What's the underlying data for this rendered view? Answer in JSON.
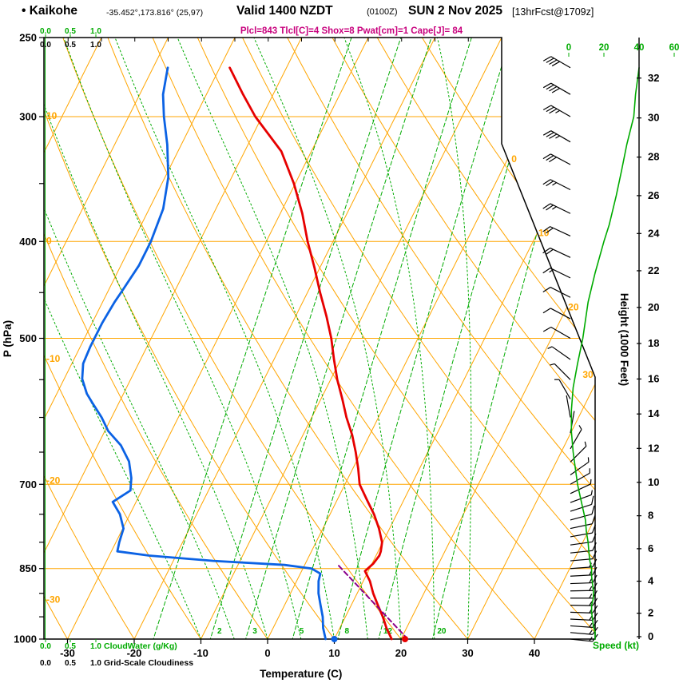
{
  "chart_data": {
    "type": "skewt_sounding",
    "title": {
      "station": "• Kaikohe",
      "coords": "-35.452°,173.816° (25,97)",
      "valid": "Valid 1400 NZDT",
      "valid_z": "(0100Z)",
      "date": "SUN 2 Nov 2025",
      "fcst": "[13hrFcst@1709z]",
      "params": "Plcl=843 Tlcl[C]=4 Shox=8 Pwat[cm]=1 Cape[J]= 84"
    },
    "axes": {
      "pressure_label": "P (hPa)",
      "temp_label": "Temperature (C)",
      "height_label": "Height (1000 Feet)",
      "speed_label": "Speed (kt)",
      "cloudwater_label": "CloudWater (g/Kg)",
      "gridscale_label": "Grid-Scale Cloudiness",
      "pressure_ticks": [
        250,
        300,
        400,
        500,
        700,
        850,
        1000
      ],
      "temp_ticks": [
        -30,
        -20,
        -10,
        0,
        10,
        20,
        30,
        40
      ],
      "height_ticks": [
        0,
        2,
        4,
        6,
        8,
        10,
        12,
        14,
        16,
        18,
        20,
        22,
        24,
        26,
        28,
        30,
        32
      ],
      "speed_ticks": [
        0,
        20,
        40,
        60
      ],
      "cloud_ticks": [
        "0.0",
        "0.5",
        "1.0"
      ]
    },
    "grid": {
      "pressure_lines": [
        300,
        400,
        500,
        700,
        850
      ],
      "isotherm_labels": [
        0,
        10,
        20,
        30
      ],
      "dry_adiabat_labels": [
        10,
        0,
        -10,
        -20,
        -30
      ],
      "moist_adiabat_starts": [
        -10,
        -5,
        0,
        5,
        10,
        15,
        20,
        25,
        30
      ],
      "mixing_ratio_lines": [
        1,
        2,
        3,
        5,
        8,
        12,
        20
      ],
      "mixing_ratio_labels": [
        2,
        3,
        5,
        8,
        12,
        20
      ]
    },
    "temperature_profile": [
      [
        1000,
        18.6
      ],
      [
        975,
        17.0
      ],
      [
        950,
        15.6
      ],
      [
        925,
        14.0
      ],
      [
        900,
        12.4
      ],
      [
        875,
        11.0
      ],
      [
        855,
        9.5
      ],
      [
        840,
        10.2
      ],
      [
        825,
        10.5
      ],
      [
        817,
        10.4
      ],
      [
        800,
        9.9
      ],
      [
        775,
        8.4
      ],
      [
        750,
        6.6
      ],
      [
        725,
        4.4
      ],
      [
        700,
        2.2
      ],
      [
        675,
        0.8
      ],
      [
        650,
        -0.8
      ],
      [
        625,
        -2.6
      ],
      [
        600,
        -4.8
      ],
      [
        575,
        -6.8
      ],
      [
        550,
        -9.0
      ],
      [
        525,
        -11.0
      ],
      [
        500,
        -13.0
      ],
      [
        475,
        -15.4
      ],
      [
        450,
        -18.1
      ],
      [
        425,
        -20.8
      ],
      [
        400,
        -23.8
      ],
      [
        375,
        -26.7
      ],
      [
        350,
        -30.2
      ],
      [
        325,
        -34.5
      ],
      [
        300,
        -41.0
      ],
      [
        285,
        -44.5
      ],
      [
        268,
        -48.5
      ]
    ],
    "dewpoint_profile": [
      [
        1000,
        8.7
      ],
      [
        975,
        7.5
      ],
      [
        950,
        6.6
      ],
      [
        925,
        5.4
      ],
      [
        900,
        4.2
      ],
      [
        875,
        3.3
      ],
      [
        860,
        3.0
      ],
      [
        850,
        1.3
      ],
      [
        843,
        -3.0
      ],
      [
        835,
        -14.0
      ],
      [
        825,
        -24.0
      ],
      [
        817,
        -29.1
      ],
      [
        800,
        -29.5
      ],
      [
        775,
        -29.9
      ],
      [
        750,
        -31.5
      ],
      [
        729,
        -33.5
      ],
      [
        710,
        -31.7
      ],
      [
        690,
        -32.5
      ],
      [
        664,
        -34.1
      ],
      [
        640,
        -36.5
      ],
      [
        619,
        -39.5
      ],
      [
        600,
        -41.5
      ],
      [
        580,
        -44.0
      ],
      [
        568,
        -45.5
      ],
      [
        549,
        -47.3
      ],
      [
        530,
        -48.3
      ],
      [
        510,
        -48.5
      ],
      [
        483,
        -48.5
      ],
      [
        460,
        -48.2
      ],
      [
        448,
        -47.9
      ],
      [
        423,
        -47.3
      ],
      [
        400,
        -47.3
      ],
      [
        371,
        -47.9
      ],
      [
        345,
        -49.5
      ],
      [
        320,
        -52.1
      ],
      [
        300,
        -54.7
      ],
      [
        285,
        -56.5
      ],
      [
        268,
        -57.8
      ]
    ],
    "parcel_path": [
      [
        1000,
        21
      ],
      [
        843,
        5
      ]
    ],
    "surface": {
      "temp_c": 20.6,
      "dewpoint_c": 10.0,
      "lcl_hpa": 843
    },
    "wind_barbs": [
      [
        268,
        40,
        300
      ],
      [
        285,
        38,
        300
      ],
      [
        300,
        37,
        300
      ],
      [
        318,
        33,
        300
      ],
      [
        335,
        30,
        298
      ],
      [
        355,
        27,
        297
      ],
      [
        375,
        24,
        296
      ],
      [
        395,
        21,
        295
      ],
      [
        415,
        18,
        295
      ],
      [
        435,
        15,
        296
      ],
      [
        455,
        12,
        297
      ],
      [
        478,
        10,
        298
      ],
      [
        500,
        8,
        300
      ],
      [
        525,
        6,
        305
      ],
      [
        550,
        4,
        315
      ],
      [
        575,
        3,
        330
      ],
      [
        600,
        2,
        350
      ],
      [
        622,
        2,
        10
      ],
      [
        645,
        3,
        30
      ],
      [
        665,
        4,
        45
      ],
      [
        685,
        5,
        55
      ],
      [
        700,
        5,
        60
      ],
      [
        715,
        6,
        65
      ],
      [
        730,
        7,
        70
      ],
      [
        745,
        8,
        72
      ],
      [
        760,
        9,
        75
      ],
      [
        775,
        10,
        78
      ],
      [
        790,
        10,
        80
      ],
      [
        805,
        11,
        82
      ],
      [
        820,
        11,
        84
      ],
      [
        835,
        12,
        85
      ],
      [
        850,
        13,
        86
      ],
      [
        865,
        13,
        87
      ],
      [
        880,
        13,
        88
      ],
      [
        895,
        14,
        89
      ],
      [
        910,
        14,
        90
      ],
      [
        925,
        13,
        91
      ],
      [
        940,
        13,
        92
      ],
      [
        955,
        13,
        93
      ],
      [
        970,
        14,
        94
      ],
      [
        985,
        15,
        95
      ],
      [
        1000,
        15,
        96
      ]
    ],
    "wind_speed_profile": [
      [
        268,
        40
      ],
      [
        285,
        38
      ],
      [
        300,
        37
      ],
      [
        320,
        33
      ],
      [
        340,
        30
      ],
      [
        360,
        27
      ],
      [
        385,
        23
      ],
      [
        400,
        20
      ],
      [
        430,
        15
      ],
      [
        460,
        11
      ],
      [
        500,
        8
      ],
      [
        530,
        5
      ],
      [
        560,
        2.5
      ],
      [
        590,
        1.5
      ],
      [
        620,
        1.5
      ],
      [
        650,
        2.5
      ],
      [
        680,
        4
      ],
      [
        700,
        5
      ],
      [
        720,
        6.5
      ],
      [
        740,
        8
      ],
      [
        760,
        9.5
      ],
      [
        780,
        10
      ],
      [
        800,
        11
      ],
      [
        820,
        11.5
      ],
      [
        835,
        12
      ],
      [
        850,
        13
      ],
      [
        865,
        13
      ],
      [
        880,
        13.5
      ],
      [
        895,
        14
      ],
      [
        910,
        14
      ],
      [
        925,
        13
      ],
      [
        940,
        13
      ],
      [
        955,
        13.5
      ],
      [
        970,
        14
      ],
      [
        985,
        15
      ],
      [
        1000,
        15
      ]
    ],
    "colors": {
      "orange": "#FFA500",
      "green": "#00AB00",
      "blue": "#0B62E4",
      "red": "#E60000",
      "purple": "#8B008B",
      "magenta": "#C8007D",
      "black": "#000000"
    }
  }
}
